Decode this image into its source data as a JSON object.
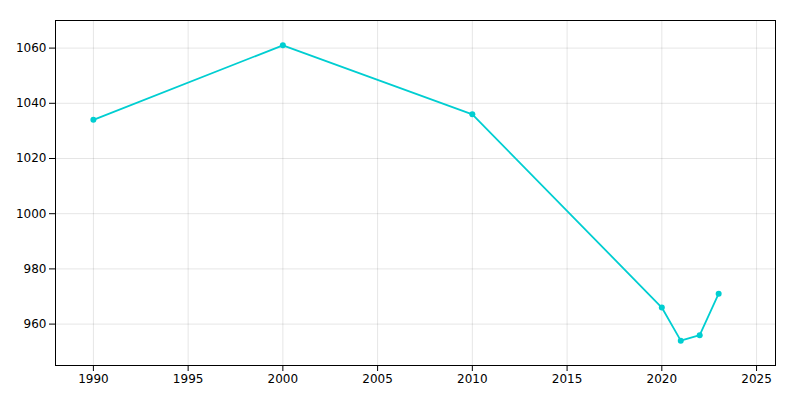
{
  "chart_data": {
    "type": "line",
    "x": [
      1990,
      2000,
      2010,
      2020,
      2021,
      2022,
      2023
    ],
    "values": [
      1034,
      1061,
      1036,
      966,
      954,
      956,
      971
    ],
    "color": "#00CED1",
    "marker": "circle",
    "xlim": [
      1988,
      2026
    ],
    "ylim": [
      945,
      1070
    ],
    "xticks": [
      1990,
      1995,
      2000,
      2005,
      2010,
      2015,
      2020,
      2025
    ],
    "yticks": [
      960,
      980,
      1000,
      1020,
      1040,
      1060
    ],
    "grid": true
  }
}
